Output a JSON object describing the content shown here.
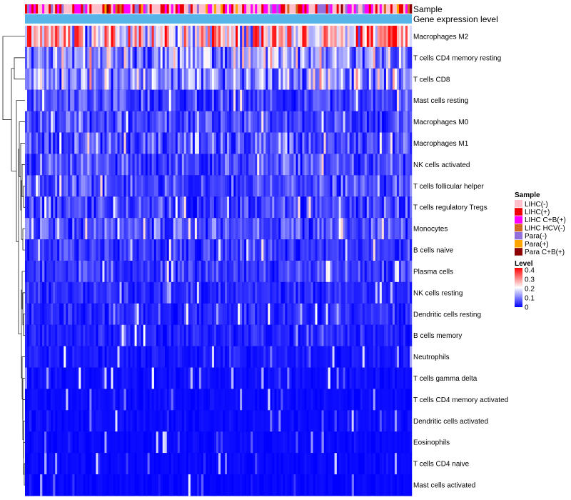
{
  "chart_data": {
    "type": "heatmap",
    "title": "",
    "annotation_tracks": [
      "Sample",
      "Gene expression level"
    ],
    "rows": [
      {
        "label": "Macrophages M2",
        "mean": 0.26
      },
      {
        "label": "T cells CD4 memory resting",
        "mean": 0.13
      },
      {
        "label": "T cells CD8",
        "mean": 0.12
      },
      {
        "label": "Mast cells resting",
        "mean": 0.06
      },
      {
        "label": "Macrophages M0",
        "mean": 0.06
      },
      {
        "label": "Macrophages M1",
        "mean": 0.07
      },
      {
        "label": "NK cells activated",
        "mean": 0.065
      },
      {
        "label": "T cells follicular helper",
        "mean": 0.065
      },
      {
        "label": "T cells regulatory  Tregs",
        "mean": 0.065
      },
      {
        "label": "Monocytes",
        "mean": 0.065
      },
      {
        "label": "B cells naive",
        "mean": 0.05
      },
      {
        "label": "Plasma cells",
        "mean": 0.05
      },
      {
        "label": "NK cells resting",
        "mean": 0.035
      },
      {
        "label": "Dendritic cells resting",
        "mean": 0.035
      },
      {
        "label": "B cells memory",
        "mean": 0.03
      },
      {
        "label": "Neutrophils",
        "mean": 0.02
      },
      {
        "label": "T cells gamma delta",
        "mean": 0.012
      },
      {
        "label": "T cells CD4 memory activated",
        "mean": 0.01
      },
      {
        "label": "Dendritic cells activated",
        "mean": 0.01
      },
      {
        "label": "Eosinophils",
        "mean": 0.008
      },
      {
        "label": "T cells CD4 naive",
        "mean": 0.008
      },
      {
        "label": "Mast cells activated",
        "mean": 0.006
      }
    ],
    "sample_legend": {
      "title": "Sample",
      "entries": [
        {
          "label": "LIHC(-)",
          "color": "#FFC0CB"
        },
        {
          "label": "LIHC(+)",
          "color": "#EE0000"
        },
        {
          "label": "LIHC C+B(+)",
          "color": "#FF00FF"
        },
        {
          "label": "LIHC HCV(-)",
          "color": "#D2691E"
        },
        {
          "label": "Para(-)",
          "color": "#9370DB"
        },
        {
          "label": "Para(+)",
          "color": "#FFA500"
        },
        {
          "label": "Para C+B(+)",
          "color": "#8B0000"
        }
      ]
    },
    "level_legend": {
      "title": "Level",
      "ticks": [
        "0.4",
        "0.3",
        "0.2",
        "0.1",
        "0"
      ],
      "tick_values": [
        0.4,
        0.3,
        0.2,
        0.1,
        0
      ],
      "range": [
        0,
        0.4
      ],
      "colors": {
        "low": "#0000FF",
        "mid": "#FFFFFF",
        "high": "#FF0000"
      }
    },
    "gene_expression_color": "#56B4E9"
  }
}
